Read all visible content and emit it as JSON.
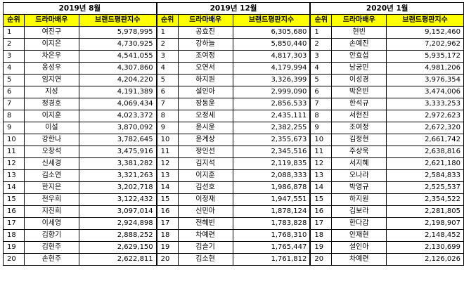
{
  "header_labels": {
    "rank": "순위",
    "actor": "드라마배우",
    "score": "브랜드평판지수"
  },
  "tables": [
    {
      "period": "2019년 8월",
      "rows": [
        {
          "rank": "1",
          "actor": "여진구",
          "score": "5,978,995"
        },
        {
          "rank": "2",
          "actor": "이지은",
          "score": "4,730,925"
        },
        {
          "rank": "3",
          "actor": "차은우",
          "score": "4,541,055"
        },
        {
          "rank": "4",
          "actor": "옹성우",
          "score": "4,307,860"
        },
        {
          "rank": "5",
          "actor": "임지연",
          "score": "4,204,220"
        },
        {
          "rank": "6",
          "actor": "지성",
          "score": "4,191,389"
        },
        {
          "rank": "7",
          "actor": "정경호",
          "score": "4,069,434"
        },
        {
          "rank": "8",
          "actor": "이지훈",
          "score": "4,023,372"
        },
        {
          "rank": "9",
          "actor": "이설",
          "score": "3,870,092"
        },
        {
          "rank": "10",
          "actor": "강한나",
          "score": "3,782,645"
        },
        {
          "rank": "11",
          "actor": "오창석",
          "score": "3,475,916"
        },
        {
          "rank": "12",
          "actor": "신세경",
          "score": "3,381,282"
        },
        {
          "rank": "13",
          "actor": "김소연",
          "score": "3,321,263"
        },
        {
          "rank": "14",
          "actor": "한지은",
          "score": "3,202,718"
        },
        {
          "rank": "15",
          "actor": "천우희",
          "score": "3,122,432"
        },
        {
          "rank": "16",
          "actor": "지진희",
          "score": "3,097,014"
        },
        {
          "rank": "17",
          "actor": "이세영",
          "score": "2,924,898"
        },
        {
          "rank": "18",
          "actor": "김향기",
          "score": "2,888,252"
        },
        {
          "rank": "19",
          "actor": "김현주",
          "score": "2,629,150"
        },
        {
          "rank": "20",
          "actor": "손현주",
          "score": "2,622,811"
        }
      ]
    },
    {
      "period": "2019년 12월",
      "rows": [
        {
          "rank": "1",
          "actor": "공효진",
          "score": "6,305,680"
        },
        {
          "rank": "2",
          "actor": "강하늘",
          "score": "5,850,440"
        },
        {
          "rank": "3",
          "actor": "조여정",
          "score": "4,817,303"
        },
        {
          "rank": "4",
          "actor": "오연서",
          "score": "4,179,994"
        },
        {
          "rank": "5",
          "actor": "하지원",
          "score": "3,326,399"
        },
        {
          "rank": "6",
          "actor": "설인아",
          "score": "2,999,090"
        },
        {
          "rank": "7",
          "actor": "장동윤",
          "score": "2,856,533"
        },
        {
          "rank": "8",
          "actor": "오정세",
          "score": "2,435,111"
        },
        {
          "rank": "9",
          "actor": "윤시윤",
          "score": "2,382,255"
        },
        {
          "rank": "10",
          "actor": "윤계상",
          "score": "2,355,673"
        },
        {
          "rank": "11",
          "actor": "정인선",
          "score": "2,345,516"
        },
        {
          "rank": "12",
          "actor": "김지석",
          "score": "2,119,835"
        },
        {
          "rank": "13",
          "actor": "이지훈",
          "score": "2,088,333"
        },
        {
          "rank": "14",
          "actor": "김선호",
          "score": "1,986,878"
        },
        {
          "rank": "15",
          "actor": "이정재",
          "score": "1,947,551"
        },
        {
          "rank": "16",
          "actor": "신민아",
          "score": "1,878,124"
        },
        {
          "rank": "17",
          "actor": "전혜빈",
          "score": "1,783,828"
        },
        {
          "rank": "18",
          "actor": "차예련",
          "score": "1,768,310"
        },
        {
          "rank": "19",
          "actor": "김슬기",
          "score": "1,765,447"
        },
        {
          "rank": "20",
          "actor": "김소현",
          "score": "1,761,812"
        }
      ]
    },
    {
      "period": "2020년 1월",
      "rows": [
        {
          "rank": "1",
          "actor": "현빈",
          "score": "9,152,460"
        },
        {
          "rank": "2",
          "actor": "손예진",
          "score": "7,202,962"
        },
        {
          "rank": "3",
          "actor": "안효섭",
          "score": "5,935,172"
        },
        {
          "rank": "4",
          "actor": "남궁민",
          "score": "4,981,206"
        },
        {
          "rank": "5",
          "actor": "이성경",
          "score": "3,976,354"
        },
        {
          "rank": "6",
          "actor": "박은빈",
          "score": "3,474,006"
        },
        {
          "rank": "7",
          "actor": "한석규",
          "score": "3,333,253"
        },
        {
          "rank": "8",
          "actor": "서현진",
          "score": "2,972,623"
        },
        {
          "rank": "9",
          "actor": "조여정",
          "score": "2,672,320"
        },
        {
          "rank": "10",
          "actor": "김정현",
          "score": "2,661,742"
        },
        {
          "rank": "11",
          "actor": "주상욱",
          "score": "2,638,816"
        },
        {
          "rank": "12",
          "actor": "서지혜",
          "score": "2,621,180"
        },
        {
          "rank": "13",
          "actor": "오나라",
          "score": "2,584,833"
        },
        {
          "rank": "14",
          "actor": "박영규",
          "score": "2,525,537"
        },
        {
          "rank": "15",
          "actor": "하지원",
          "score": "2,354,522"
        },
        {
          "rank": "16",
          "actor": "김보라",
          "score": "2,281,805"
        },
        {
          "rank": "17",
          "actor": "한다감",
          "score": "2,198,907"
        },
        {
          "rank": "18",
          "actor": "안재현",
          "score": "2,148,452"
        },
        {
          "rank": "19",
          "actor": "설인아",
          "score": "2,130,699"
        },
        {
          "rank": "20",
          "actor": "차예련",
          "score": "2,126,026"
        }
      ]
    }
  ],
  "colors": {
    "header_fill": "#ffff00",
    "border": "#000000"
  }
}
